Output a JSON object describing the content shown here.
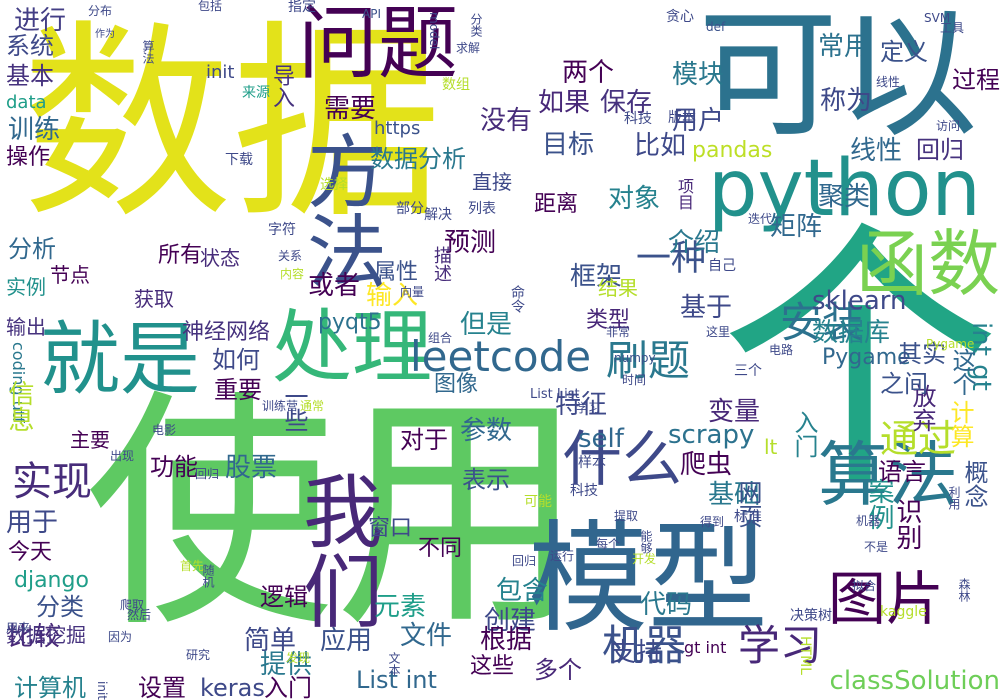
{
  "words": [
    {
      "text": "数据",
      "color": "#e3e21a",
      "vertical": false
    },
    {
      "text": "使用",
      "color": "#5ec962",
      "vertical": false
    },
    {
      "text": "可以",
      "color": "#2c728e",
      "vertical": false
    },
    {
      "text": "个",
      "color": "#21a585",
      "vertical": false
    },
    {
      "text": "模型",
      "color": "#31668e",
      "vertical": false
    },
    {
      "text": "问题",
      "color": "#440154",
      "vertical": false
    },
    {
      "text": "python",
      "color": "#21918c",
      "vertical": false
    },
    {
      "text": "方法",
      "color": "#3b528b",
      "vertical": true
    },
    {
      "text": "函数",
      "color": "#7ad151",
      "vertical": false
    },
    {
      "text": "处理",
      "color": "#35b779",
      "vertical": false
    },
    {
      "text": "就是",
      "color": "#21918c",
      "vertical": false
    },
    {
      "text": "我们",
      "color": "#482878",
      "vertical": true
    },
    {
      "text": "算法",
      "color": "#2a788e",
      "vertical": false
    },
    {
      "text": "什么",
      "color": "#3e4989",
      "vertical": false
    },
    {
      "text": "图片",
      "color": "#440154",
      "vertical": false
    },
    {
      "text": "leetcode",
      "color": "#31688e",
      "vertical": false
    },
    {
      "text": "刷题",
      "color": "#2a788e",
      "vertical": false
    },
    {
      "text": "安装",
      "color": "#2c728e",
      "vertical": false
    },
    {
      "text": "通过",
      "color": "#b5de2b",
      "vertical": false
    },
    {
      "text": "实现",
      "color": "#472c7a",
      "vertical": false
    },
    {
      "text": "机器",
      "color": "#3b528b",
      "vertical": false
    },
    {
      "text": "学习",
      "color": "#482878",
      "vertical": false
    },
    {
      "text": "一种",
      "color": "#3b528b",
      "vertical": false
    },
    {
      "text": "sklearn",
      "color": "#3e4989",
      "vertical": false
    },
    {
      "text": "数据库",
      "color": "#26828e",
      "vertical": false
    },
    {
      "text": "self",
      "color": "#31688e",
      "vertical": false
    },
    {
      "text": "scrapy",
      "color": "#2c728e",
      "vertical": false
    },
    {
      "text": "pyqt5",
      "color": "#2c728e",
      "vertical": false
    },
    {
      "text": "django",
      "color": "#1f9e89",
      "vertical": false
    },
    {
      "text": "classSolution",
      "color": "#6ece58",
      "vertical": false
    },
    {
      "text": "List int",
      "color": "#31688e",
      "vertical": false
    },
    {
      "text": "keras",
      "color": "#3e4989",
      "vertical": false
    },
    {
      "text": "Pygame",
      "color": "#31688e",
      "vertical": false
    },
    {
      "text": "pandas",
      "color": "#bddf26",
      "vertical": false
    },
    {
      "text": "int gt",
      "color": "#26828e",
      "vertical": true
    },
    {
      "text": "coding utf",
      "color": "#2a788e",
      "vertical": true
    },
    {
      "text": "数据分析",
      "color": "#2a788e",
      "vertical": false
    },
    {
      "text": "神经网络",
      "color": "#46327e",
      "vertical": false
    },
    {
      "text": "常用",
      "color": "#2c728e",
      "vertical": false
    },
    {
      "text": "模块",
      "color": "#2a788e",
      "vertical": false
    },
    {
      "text": "需要",
      "color": "#440154",
      "vertical": false
    },
    {
      "text": "没有",
      "color": "#472c7a",
      "vertical": false
    },
    {
      "text": "用户",
      "color": "#3e4989",
      "vertical": false
    },
    {
      "text": "如果",
      "color": "#482878",
      "vertical": false
    },
    {
      "text": "保存",
      "color": "#46327e",
      "vertical": false
    },
    {
      "text": "两个",
      "color": "#440154",
      "vertical": false
    },
    {
      "text": "进行",
      "color": "#433e85",
      "vertical": false
    },
    {
      "text": "系统",
      "color": "#3e4989",
      "vertical": false
    },
    {
      "text": "训练",
      "color": "#31688e",
      "vertical": false
    },
    {
      "text": "基本",
      "color": "#46327e",
      "vertical": false
    },
    {
      "text": "操作",
      "color": "#440154",
      "vertical": false
    },
    {
      "text": "分析",
      "color": "#31688e",
      "vertical": false
    },
    {
      "text": "比如",
      "color": "#3e4989",
      "vertical": false
    },
    {
      "text": "目标",
      "color": "#3b528b",
      "vertical": false
    },
    {
      "text": "聚类",
      "color": "#31688e",
      "vertical": false
    },
    {
      "text": "称为",
      "color": "#3e4989",
      "vertical": false
    },
    {
      "text": "线性",
      "color": "#31688e",
      "vertical": false
    },
    {
      "text": "回归",
      "color": "#46327e",
      "vertical": false
    },
    {
      "text": "过程",
      "color": "#440154",
      "vertical": false
    },
    {
      "text": "定义",
      "color": "#3b528b",
      "vertical": false
    },
    {
      "text": "对象",
      "color": "#26828e",
      "vertical": false
    },
    {
      "text": "矩阵",
      "color": "#31688e",
      "vertical": false
    },
    {
      "text": "预测",
      "color": "#440154",
      "vertical": false
    },
    {
      "text": "介绍",
      "color": "#2a788e",
      "vertical": false
    },
    {
      "text": "框架",
      "color": "#3b528b",
      "vertical": false
    },
    {
      "text": "或者",
      "color": "#440154",
      "vertical": false
    },
    {
      "text": "属性",
      "color": "#3b528b",
      "vertical": false
    },
    {
      "text": "输入",
      "color": "#fde725",
      "vertical": false
    },
    {
      "text": "基于",
      "color": "#3e4989",
      "vertical": false
    },
    {
      "text": "如何",
      "color": "#3e4989",
      "vertical": false
    },
    {
      "text": "重要",
      "color": "#440154",
      "vertical": false
    },
    {
      "text": "但是",
      "color": "#26828e",
      "vertical": false
    },
    {
      "text": "类型",
      "color": "#482878",
      "vertical": false
    },
    {
      "text": "图像",
      "color": "#31688e",
      "vertical": false
    },
    {
      "text": "特征",
      "color": "#3e4989",
      "vertical": false
    },
    {
      "text": "变量",
      "color": "#482878",
      "vertical": false
    },
    {
      "text": "参数",
      "color": "#31688e",
      "vertical": false
    },
    {
      "text": "对于",
      "color": "#440154",
      "vertical": false
    },
    {
      "text": "爬虫",
      "color": "#440154",
      "vertical": false
    },
    {
      "text": "基础",
      "color": "#2a788e",
      "vertical": false
    },
    {
      "text": "股票",
      "color": "#31688e",
      "vertical": false
    },
    {
      "text": "功能",
      "color": "#440154",
      "vertical": false
    },
    {
      "text": "表示",
      "color": "#3b528b",
      "vertical": false
    },
    {
      "text": "主要",
      "color": "#440154",
      "vertical": false
    },
    {
      "text": "信息",
      "color": "#b5de2b",
      "vertical": true
    },
    {
      "text": "用于",
      "color": "#3e4989",
      "vertical": false
    },
    {
      "text": "今天",
      "color": "#440154",
      "vertical": false
    },
    {
      "text": "分类",
      "color": "#3b528b",
      "vertical": false
    },
    {
      "text": "比较",
      "color": "#482878",
      "vertical": false
    },
    {
      "text": "设置",
      "color": "#440154",
      "vertical": false
    },
    {
      "text": "入门",
      "color": "#440154",
      "vertical": false
    },
    {
      "text": "简单",
      "color": "#3e4989",
      "vertical": false
    },
    {
      "text": "提供",
      "color": "#2a788e",
      "vertical": false
    },
    {
      "text": "应用",
      "color": "#3b528b",
      "vertical": false
    },
    {
      "text": "元素",
      "color": "#1f9e89",
      "vertical": false
    },
    {
      "text": "包含",
      "color": "#26828e",
      "vertical": false
    },
    {
      "text": "创建",
      "color": "#3e4989",
      "vertical": false
    },
    {
      "text": "文件",
      "color": "#31688e",
      "vertical": false
    },
    {
      "text": "根据",
      "color": "#440154",
      "vertical": false
    },
    {
      "text": "代码",
      "color": "#2a788e",
      "vertical": false
    },
    {
      "text": "支持",
      "color": "#3e4989",
      "vertical": false
    },
    {
      "text": "这个",
      "color": "#31688e",
      "vertical": true
    },
    {
      "text": "计算",
      "color": "#fde725",
      "vertical": true
    },
    {
      "text": "放弃",
      "color": "#482878",
      "vertical": true
    },
    {
      "text": "入门",
      "color": "#26828e",
      "vertical": true
    },
    {
      "text": "网页",
      "color": "#3b528b",
      "vertical": true
    },
    {
      "text": "案例",
      "color": "#21918c",
      "vertical": true
    },
    {
      "text": "概念",
      "color": "#3b528b",
      "vertical": true
    },
    {
      "text": "识别",
      "color": "#440154",
      "vertical": true
    },
    {
      "text": "之间",
      "color": "#3b528b",
      "vertical": false
    },
    {
      "text": "语言",
      "color": "#440154",
      "vertical": false
    },
    {
      "text": "其实",
      "color": "#3b528b",
      "vertical": false
    },
    {
      "text": "一些",
      "color": "#3e4989",
      "vertical": true
    },
    {
      "text": "导入",
      "color": "#46327e",
      "vertical": true
    },
    {
      "text": "直接",
      "color": "#3e4989",
      "vertical": false
    },
    {
      "text": "结果",
      "color": "#b5de2b",
      "vertical": false
    },
    {
      "text": "状态",
      "color": "#472c7a",
      "vertical": false
    },
    {
      "text": "所有",
      "color": "#440154",
      "vertical": false
    },
    {
      "text": "实例",
      "color": "#21918c",
      "vertical": false
    },
    {
      "text": "节点",
      "color": "#440154",
      "vertical": false
    },
    {
      "text": "获取",
      "color": "#472c7a",
      "vertical": false
    },
    {
      "text": "输出",
      "color": "#46327e",
      "vertical": false
    },
    {
      "text": "数据挖掘",
      "color": "#46327e",
      "vertical": false
    },
    {
      "text": "逻辑",
      "color": "#440154",
      "vertical": false
    },
    {
      "text": "计算机",
      "color": "#26828e",
      "vertical": false
    },
    {
      "text": "距离",
      "color": "#440154",
      "vertical": false
    },
    {
      "text": "项目",
      "color": "#482878",
      "vertical": true
    },
    {
      "text": "描述",
      "color": "#472c7a",
      "vertical": true
    },
    {
      "text": "不同",
      "color": "#440154",
      "vertical": false
    },
    {
      "text": "窗口",
      "color": "#3e4989",
      "vertical": false
    },
    {
      "text": "多个",
      "color": "#482878",
      "vertical": false
    },
    {
      "text": "这些",
      "color": "#440154",
      "vertical": false
    },
    {
      "text": "data",
      "color": "#1f9e89",
      "vertical": false
    },
    {
      "text": "https",
      "color": "#3b528b",
      "vertical": false
    },
    {
      "text": "API",
      "color": "#3b528b",
      "vertical": false
    },
    {
      "text": "SVM",
      "color": "#3e4989",
      "vertical": false
    },
    {
      "text": "def",
      "color": "#3b528b",
      "vertical": false
    },
    {
      "text": "numpy",
      "color": "#3b528b",
      "vertical": false
    },
    {
      "text": "HTML",
      "color": "#b5de2b",
      "vertical": true
    },
    {
      "text": "kaggle",
      "color": "#b5de2b",
      "vertical": false
    },
    {
      "text": "决策树",
      "color": "#3e4989",
      "vertical": false
    },
    {
      "text": "gt int",
      "color": "#440154",
      "vertical": false
    },
    {
      "text": "lt",
      "color": "#b5de2b",
      "vertical": false
    },
    {
      "text": "init",
      "color": "#3e4989",
      "vertical": false
    },
    {
      "text": "List List",
      "color": "#3e4989",
      "vertical": false
    },
    {
      "text": "Pygame",
      "color": "#b5de2b",
      "vertical": false
    },
    {
      "text": "来源",
      "color": "#1f9e89",
      "vertical": false
    },
    {
      "text": "包括",
      "color": "#3e4989",
      "vertical": false
    },
    {
      "text": "指定",
      "color": "#3e4989",
      "vertical": false
    },
    {
      "text": "分布",
      "color": "#3e4989",
      "vertical": false
    },
    {
      "text": "作为",
      "color": "#3e4989",
      "vertical": false
    },
    {
      "text": "算法",
      "color": "#3e4989",
      "vertical": true
    },
    {
      "text": "分类",
      "color": "#3e4989",
      "vertical": true
    },
    {
      "text": "model",
      "color": "#3e4989",
      "vertical": true
    },
    {
      "text": "求解",
      "color": "#3e4989",
      "vertical": false
    },
    {
      "text": "数组",
      "color": "#b5de2b",
      "vertical": false
    },
    {
      "text": "贪心",
      "color": "#3e4989",
      "vertical": false
    },
    {
      "text": "科技",
      "color": "#3e4989",
      "vertical": false
    },
    {
      "text": "版本",
      "color": "#3e4989",
      "vertical": false
    },
    {
      "text": "访问",
      "color": "#3e4989",
      "vertical": false
    },
    {
      "text": "线性",
      "color": "#3e4989",
      "vertical": false
    },
    {
      "text": "工具",
      "color": "#3e4989",
      "vertical": false
    },
    {
      "text": "选择",
      "color": "#b5de2b",
      "vertical": false
    },
    {
      "text": "下载",
      "color": "#3e4989",
      "vertical": false
    },
    {
      "text": "部分",
      "color": "#3e4989",
      "vertical": false
    },
    {
      "text": "解决",
      "color": "#3e4989",
      "vertical": false
    },
    {
      "text": "列表",
      "color": "#3e4989",
      "vertical": false
    },
    {
      "text": "字符",
      "color": "#3e4989",
      "vertical": false
    },
    {
      "text": "关系",
      "color": "#3e4989",
      "vertical": false
    },
    {
      "text": "内容",
      "color": "#b5de2b",
      "vertical": false
    },
    {
      "text": "向量",
      "color": "#3e4989",
      "vertical": false
    },
    {
      "text": "命令",
      "color": "#3e4989",
      "vertical": true
    },
    {
      "text": "迭代",
      "color": "#3e4989",
      "vertical": false
    },
    {
      "text": "自己",
      "color": "#3e4989",
      "vertical": false
    },
    {
      "text": "组合",
      "color": "#3e4989",
      "vertical": false
    },
    {
      "text": "非常",
      "color": "#3e4989",
      "vertical": false
    },
    {
      "text": "这里",
      "color": "#3e4989",
      "vertical": false
    },
    {
      "text": "电路",
      "color": "#3e4989",
      "vertical": false
    },
    {
      "text": "时间",
      "color": "#3e4989",
      "vertical": false
    },
    {
      "text": "学习",
      "color": "#3e4989",
      "vertical": false
    },
    {
      "text": "训练营",
      "color": "#3e4989",
      "vertical": false
    },
    {
      "text": "通常",
      "color": "#b5de2b",
      "vertical": false
    },
    {
      "text": "三个",
      "color": "#3e4989",
      "vertical": false
    },
    {
      "text": "电影",
      "color": "#3e4989",
      "vertical": false
    },
    {
      "text": "出现",
      "color": "#3e4989",
      "vertical": false
    },
    {
      "text": "回归",
      "color": "#3e4989",
      "vertical": false
    },
    {
      "text": "样本",
      "color": "#3e4989",
      "vertical": false
    },
    {
      "text": "科技",
      "color": "#3e4989",
      "vertical": false
    },
    {
      "text": "机器",
      "color": "#3e4989",
      "vertical": false
    },
    {
      "text": "拟合",
      "color": "#3e4989",
      "vertical": false
    },
    {
      "text": "利用",
      "color": "#3e4989",
      "vertical": true
    },
    {
      "text": "可能",
      "color": "#b5de2b",
      "vertical": false
    },
    {
      "text": "提取",
      "color": "#3e4989",
      "vertical": false
    },
    {
      "text": "得到",
      "color": "#3e4989",
      "vertical": false
    },
    {
      "text": "标准",
      "color": "#3e4989",
      "vertical": false
    },
    {
      "text": "不是",
      "color": "#3e4989",
      "vertical": false
    },
    {
      "text": "森林",
      "color": "#3e4989",
      "vertical": true
    },
    {
      "text": "随机",
      "color": "#3e4989",
      "vertical": true
    },
    {
      "text": "首先",
      "color": "#b5de2b",
      "vertical": false
    },
    {
      "text": "爬取",
      "color": "#3e4989",
      "vertical": false
    },
    {
      "text": "运行",
      "color": "#3e4989",
      "vertical": false
    },
    {
      "text": "每个",
      "color": "#3e4989",
      "vertical": false
    },
    {
      "text": "能够",
      "color": "#3e4989",
      "vertical": true
    },
    {
      "text": "回归",
      "color": "#3e4989",
      "vertical": false
    },
    {
      "text": "开发",
      "color": "#b5de2b",
      "vertical": false
    },
    {
      "text": "然后",
      "color": "#3e4989",
      "vertical": false
    },
    {
      "text": "用来",
      "color": "#3e4989",
      "vertical": false
    },
    {
      "text": "因为",
      "color": "#3e4989",
      "vertical": false
    },
    {
      "text": "研究",
      "color": "#3e4989",
      "vertical": false
    },
    {
      "text": "发现",
      "color": "#b5de2b",
      "vertical": false
    },
    {
      "text": "文本",
      "color": "#3e4989",
      "vertical": true
    },
    {
      "text": "init",
      "color": "#3e4989",
      "vertical": true
    }
  ]
}
